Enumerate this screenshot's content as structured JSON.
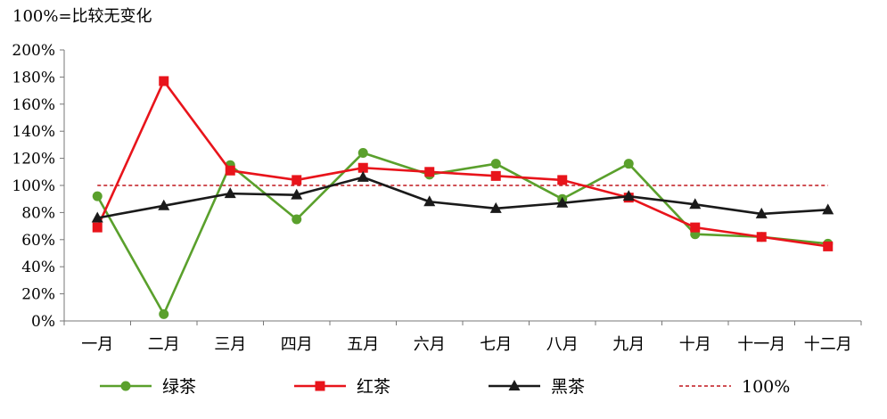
{
  "note": "100%=比较无变化",
  "chart_data": {
    "type": "line",
    "categories": [
      "一月",
      "二月",
      "三月",
      "四月",
      "五月",
      "六月",
      "七月",
      "八月",
      "九月",
      "十月",
      "十一月",
      "十二月"
    ],
    "y_ticks": [
      "0%",
      "20%",
      "40%",
      "60%",
      "80%",
      "100%",
      "120%",
      "140%",
      "160%",
      "180%",
      "200%"
    ],
    "ylim": [
      0,
      200
    ],
    "grid": false,
    "legend_position": "bottom",
    "series": [
      {
        "name": "绿茶",
        "color": "#5aa02c",
        "marker": "circle",
        "values": [
          92,
          5,
          115,
          75,
          124,
          108,
          116,
          90,
          116,
          64,
          62,
          57
        ]
      },
      {
        "name": "红茶",
        "color": "#e8141b",
        "marker": "square",
        "values": [
          69,
          177,
          111,
          104,
          113,
          110,
          107,
          104,
          91,
          69,
          62,
          55
        ]
      },
      {
        "name": "黑茶",
        "color": "#1a1a1a",
        "marker": "triangle",
        "values": [
          76,
          85,
          94,
          93,
          106,
          88,
          83,
          87,
          92,
          86,
          79,
          82
        ]
      },
      {
        "name": "100%",
        "color": "#c0171d",
        "marker": "none",
        "dashed": true,
        "values": [
          100,
          100,
          100,
          100,
          100,
          100,
          100,
          100,
          100,
          100,
          100,
          100
        ]
      }
    ]
  }
}
